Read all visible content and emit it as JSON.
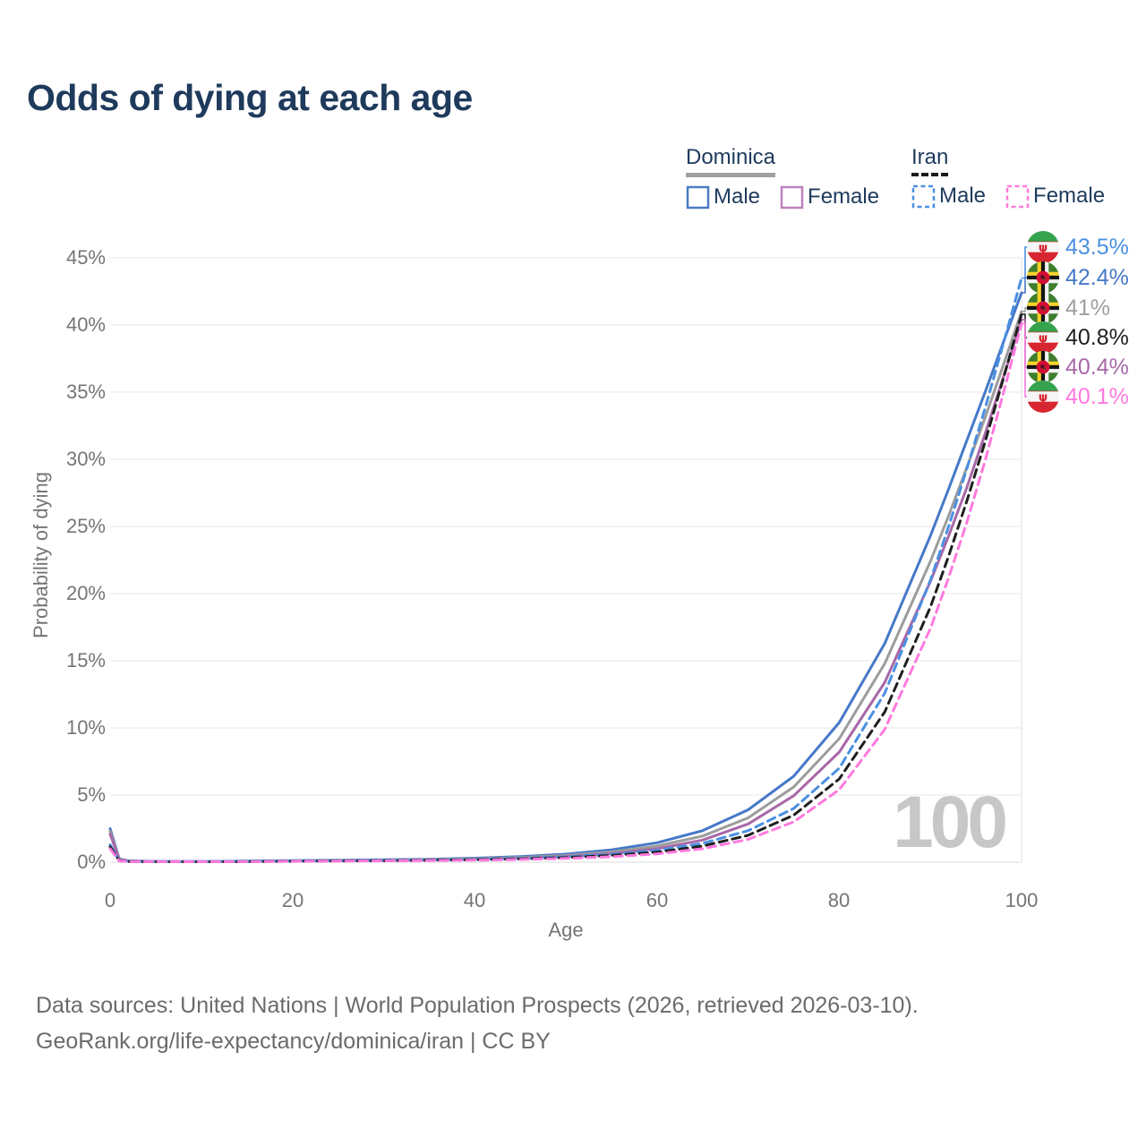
{
  "title": "Odds of dying at each age",
  "legend": {
    "groups": [
      {
        "name": "Dominica",
        "line_style": "solid",
        "underline_color": "#a0a0a0",
        "items": [
          {
            "label": "Male",
            "color": "#4c7bc4"
          },
          {
            "label": "Female",
            "color": "#bd82bd"
          }
        ]
      },
      {
        "name": "Iran",
        "line_style": "dashed",
        "underline_color": "#1b1b1b",
        "items": [
          {
            "label": "Male",
            "color": "#4a90e2"
          },
          {
            "label": "Female",
            "color": "#ff7ade"
          }
        ]
      }
    ]
  },
  "chart_data": {
    "type": "line",
    "title": "Odds of dying at each age",
    "xlabel": "Age",
    "ylabel": "Probability of dying",
    "xlim": [
      0,
      100
    ],
    "ylim": [
      0,
      45
    ],
    "grid": true,
    "legend_position": "top-right",
    "xticks": [
      "0",
      "20",
      "40",
      "60",
      "80",
      "100"
    ],
    "yticks": [
      "0%",
      "5%",
      "10%",
      "15%",
      "20%",
      "25%",
      "30%",
      "35%",
      "40%",
      "45%"
    ],
    "x": [
      0,
      1,
      2,
      5,
      10,
      15,
      20,
      25,
      30,
      35,
      40,
      45,
      50,
      55,
      60,
      65,
      70,
      75,
      80,
      85,
      90,
      92,
      94,
      96,
      98,
      100
    ],
    "series": [
      {
        "name": "Dominica Male",
        "country": "Dominica",
        "sex": "Male",
        "color": "#4678c8",
        "dash": false,
        "end_value": "42.4%",
        "values": [
          2.5,
          0.25,
          0.1,
          0.06,
          0.05,
          0.08,
          0.12,
          0.15,
          0.18,
          0.22,
          0.3,
          0.42,
          0.6,
          0.92,
          1.45,
          2.35,
          3.9,
          6.4,
          10.4,
          16.3,
          24.3,
          27.8,
          31.4,
          35.0,
          38.7,
          42.4
        ]
      },
      {
        "name": "Dominica Both sexes",
        "country": "Dominica",
        "sex": "Both",
        "color": "#9c9c9c",
        "dash": false,
        "end_value": "41%",
        "values": [
          2.3,
          0.22,
          0.09,
          0.05,
          0.04,
          0.06,
          0.1,
          0.12,
          0.15,
          0.19,
          0.25,
          0.35,
          0.5,
          0.77,
          1.2,
          1.95,
          3.3,
          5.6,
          9.2,
          14.8,
          22.4,
          25.8,
          29.4,
          33.1,
          37.0,
          41.0
        ]
      },
      {
        "name": "Dominica Female",
        "country": "Dominica",
        "sex": "Female",
        "color": "#a868a8",
        "dash": false,
        "end_value": "40.4%",
        "values": [
          2.1,
          0.2,
          0.08,
          0.05,
          0.04,
          0.05,
          0.08,
          0.1,
          0.12,
          0.16,
          0.21,
          0.29,
          0.42,
          0.64,
          1.0,
          1.65,
          2.85,
          4.95,
          8.2,
          13.4,
          20.9,
          24.3,
          27.9,
          31.9,
          36.1,
          40.4
        ]
      },
      {
        "name": "Iran Male",
        "country": "Iran",
        "sex": "Male",
        "color": "#4a90e2",
        "dash": true,
        "end_value": "43.5%",
        "values": [
          1.3,
          0.12,
          0.06,
          0.04,
          0.04,
          0.06,
          0.09,
          0.11,
          0.13,
          0.16,
          0.21,
          0.28,
          0.4,
          0.58,
          0.88,
          1.4,
          2.35,
          4.0,
          7.0,
          12.6,
          21.0,
          25.0,
          29.3,
          33.8,
          38.6,
          43.5
        ]
      },
      {
        "name": "Iran Both sexes",
        "country": "Iran",
        "sex": "Both",
        "color": "#1f1f1f",
        "dash": true,
        "end_value": "40.8%",
        "values": [
          1.15,
          0.1,
          0.05,
          0.035,
          0.03,
          0.05,
          0.07,
          0.09,
          0.11,
          0.14,
          0.18,
          0.24,
          0.34,
          0.5,
          0.75,
          1.2,
          2.0,
          3.5,
          6.2,
          11.2,
          19.0,
          22.8,
          26.9,
          31.3,
          36.0,
          40.8
        ]
      },
      {
        "name": "Iran Female",
        "country": "Iran",
        "sex": "Female",
        "color": "#ff79de",
        "dash": true,
        "end_value": "40.1%",
        "values": [
          1.0,
          0.09,
          0.05,
          0.03,
          0.03,
          0.04,
          0.06,
          0.08,
          0.1,
          0.12,
          0.15,
          0.2,
          0.28,
          0.41,
          0.62,
          1.0,
          1.7,
          3.0,
          5.4,
          9.9,
          17.4,
          21.2,
          25.3,
          29.9,
          34.9,
          40.1
        ]
      }
    ]
  },
  "end_labels": [
    {
      "text": "43.5%",
      "series": "Iran Male",
      "flag": "iran",
      "color": "#4a90e2"
    },
    {
      "text": "42.4%",
      "series": "Dominica Male",
      "flag": "dominica",
      "color": "#4678c8"
    },
    {
      "text": "41%",
      "series": "Dominica Both sexes",
      "flag": "dominica",
      "color": "#9e9e9e"
    },
    {
      "text": "40.8%",
      "series": "Iran Both sexes",
      "flag": "iran",
      "color": "#1f1f1f"
    },
    {
      "text": "40.4%",
      "series": "Dominica Female",
      "flag": "dominica",
      "color": "#a868a8"
    },
    {
      "text": "40.1%",
      "series": "Iran Female",
      "flag": "iran",
      "color": "#ff79de"
    }
  ],
  "watermark": "100",
  "footer": {
    "line1": "Data sources: United Nations | World Population Prospects (2026, retrieved 2026-03-10).",
    "line2": "GeoRank.org/life-expectancy/dominica/iran | CC BY"
  }
}
